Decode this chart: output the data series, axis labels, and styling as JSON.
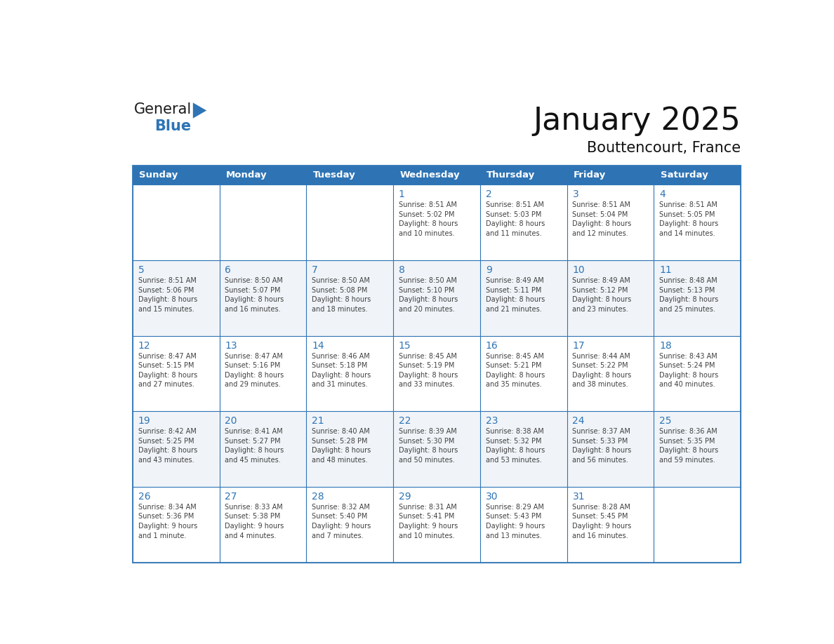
{
  "title": "January 2025",
  "subtitle": "Bouttencourt, France",
  "header_color": "#2e74b5",
  "header_text_color": "#ffffff",
  "cell_bg_even": "#ffffff",
  "cell_bg_odd": "#f0f4f8",
  "border_color": "#2e74b5",
  "day_number_color": "#2e74b5",
  "cell_text_color": "#404040",
  "days_of_week": [
    "Sunday",
    "Monday",
    "Tuesday",
    "Wednesday",
    "Thursday",
    "Friday",
    "Saturday"
  ],
  "weeks": [
    [
      {
        "day": "",
        "info": ""
      },
      {
        "day": "",
        "info": ""
      },
      {
        "day": "",
        "info": ""
      },
      {
        "day": "1",
        "info": "Sunrise: 8:51 AM\nSunset: 5:02 PM\nDaylight: 8 hours\nand 10 minutes."
      },
      {
        "day": "2",
        "info": "Sunrise: 8:51 AM\nSunset: 5:03 PM\nDaylight: 8 hours\nand 11 minutes."
      },
      {
        "day": "3",
        "info": "Sunrise: 8:51 AM\nSunset: 5:04 PM\nDaylight: 8 hours\nand 12 minutes."
      },
      {
        "day": "4",
        "info": "Sunrise: 8:51 AM\nSunset: 5:05 PM\nDaylight: 8 hours\nand 14 minutes."
      }
    ],
    [
      {
        "day": "5",
        "info": "Sunrise: 8:51 AM\nSunset: 5:06 PM\nDaylight: 8 hours\nand 15 minutes."
      },
      {
        "day": "6",
        "info": "Sunrise: 8:50 AM\nSunset: 5:07 PM\nDaylight: 8 hours\nand 16 minutes."
      },
      {
        "day": "7",
        "info": "Sunrise: 8:50 AM\nSunset: 5:08 PM\nDaylight: 8 hours\nand 18 minutes."
      },
      {
        "day": "8",
        "info": "Sunrise: 8:50 AM\nSunset: 5:10 PM\nDaylight: 8 hours\nand 20 minutes."
      },
      {
        "day": "9",
        "info": "Sunrise: 8:49 AM\nSunset: 5:11 PM\nDaylight: 8 hours\nand 21 minutes."
      },
      {
        "day": "10",
        "info": "Sunrise: 8:49 AM\nSunset: 5:12 PM\nDaylight: 8 hours\nand 23 minutes."
      },
      {
        "day": "11",
        "info": "Sunrise: 8:48 AM\nSunset: 5:13 PM\nDaylight: 8 hours\nand 25 minutes."
      }
    ],
    [
      {
        "day": "12",
        "info": "Sunrise: 8:47 AM\nSunset: 5:15 PM\nDaylight: 8 hours\nand 27 minutes."
      },
      {
        "day": "13",
        "info": "Sunrise: 8:47 AM\nSunset: 5:16 PM\nDaylight: 8 hours\nand 29 minutes."
      },
      {
        "day": "14",
        "info": "Sunrise: 8:46 AM\nSunset: 5:18 PM\nDaylight: 8 hours\nand 31 minutes."
      },
      {
        "day": "15",
        "info": "Sunrise: 8:45 AM\nSunset: 5:19 PM\nDaylight: 8 hours\nand 33 minutes."
      },
      {
        "day": "16",
        "info": "Sunrise: 8:45 AM\nSunset: 5:21 PM\nDaylight: 8 hours\nand 35 minutes."
      },
      {
        "day": "17",
        "info": "Sunrise: 8:44 AM\nSunset: 5:22 PM\nDaylight: 8 hours\nand 38 minutes."
      },
      {
        "day": "18",
        "info": "Sunrise: 8:43 AM\nSunset: 5:24 PM\nDaylight: 8 hours\nand 40 minutes."
      }
    ],
    [
      {
        "day": "19",
        "info": "Sunrise: 8:42 AM\nSunset: 5:25 PM\nDaylight: 8 hours\nand 43 minutes."
      },
      {
        "day": "20",
        "info": "Sunrise: 8:41 AM\nSunset: 5:27 PM\nDaylight: 8 hours\nand 45 minutes."
      },
      {
        "day": "21",
        "info": "Sunrise: 8:40 AM\nSunset: 5:28 PM\nDaylight: 8 hours\nand 48 minutes."
      },
      {
        "day": "22",
        "info": "Sunrise: 8:39 AM\nSunset: 5:30 PM\nDaylight: 8 hours\nand 50 minutes."
      },
      {
        "day": "23",
        "info": "Sunrise: 8:38 AM\nSunset: 5:32 PM\nDaylight: 8 hours\nand 53 minutes."
      },
      {
        "day": "24",
        "info": "Sunrise: 8:37 AM\nSunset: 5:33 PM\nDaylight: 8 hours\nand 56 minutes."
      },
      {
        "day": "25",
        "info": "Sunrise: 8:36 AM\nSunset: 5:35 PM\nDaylight: 8 hours\nand 59 minutes."
      }
    ],
    [
      {
        "day": "26",
        "info": "Sunrise: 8:34 AM\nSunset: 5:36 PM\nDaylight: 9 hours\nand 1 minute."
      },
      {
        "day": "27",
        "info": "Sunrise: 8:33 AM\nSunset: 5:38 PM\nDaylight: 9 hours\nand 4 minutes."
      },
      {
        "day": "28",
        "info": "Sunrise: 8:32 AM\nSunset: 5:40 PM\nDaylight: 9 hours\nand 7 minutes."
      },
      {
        "day": "29",
        "info": "Sunrise: 8:31 AM\nSunset: 5:41 PM\nDaylight: 9 hours\nand 10 minutes."
      },
      {
        "day": "30",
        "info": "Sunrise: 8:29 AM\nSunset: 5:43 PM\nDaylight: 9 hours\nand 13 minutes."
      },
      {
        "day": "31",
        "info": "Sunrise: 8:28 AM\nSunset: 5:45 PM\nDaylight: 9 hours\nand 16 minutes."
      },
      {
        "day": "",
        "info": ""
      }
    ]
  ],
  "logo_general_color": "#1a1a1a",
  "logo_blue_color": "#2e74b5",
  "logo_triangle_color": "#2e74b5"
}
